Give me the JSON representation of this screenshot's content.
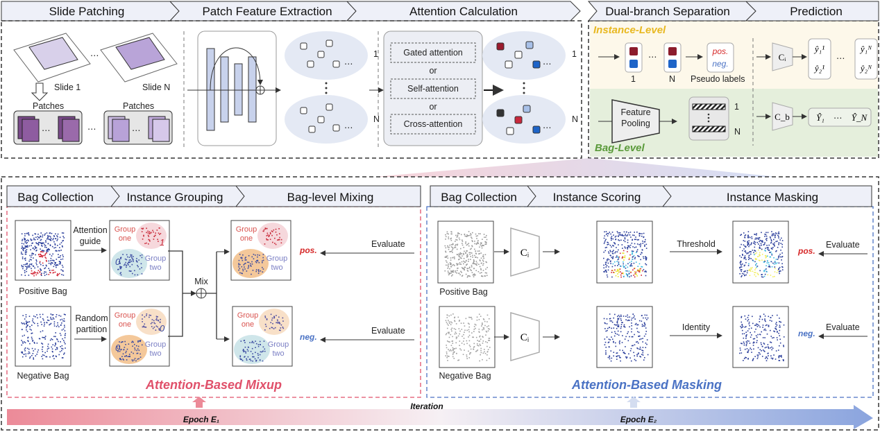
{
  "top": {
    "stages_left": [
      "Slide Patching",
      "Patch Feature Extraction",
      "Attention Calculation"
    ],
    "stages_right": [
      "Dual-branch Separation",
      "Prediction"
    ],
    "slide_patching": {
      "slide1": "Slide 1",
      "slideN": "Slide N",
      "patches": "Patches",
      "ellipsis": "⋯"
    },
    "feature": {
      "index_1": "1",
      "index_n": "N"
    },
    "attention": {
      "options": [
        "Gated attention",
        "Self-attention",
        "Cross-attention"
      ],
      "or": "or"
    },
    "dual_branch": {
      "instance_level": "Instance-Level",
      "bag_level": "Bag-Level",
      "pos": "pos.",
      "neg": "neg.",
      "pseudo_labels": "Pseudo labels",
      "index_1": "1",
      "index_n": "N",
      "feature_pooling": [
        "Feature",
        "Pooling"
      ]
    },
    "prediction": {
      "ci": "Cᵢ",
      "cb": "C_b",
      "instance_outputs": [
        "ŷ₁¹",
        "ŷ₂¹",
        "ŷ₁ᴺ",
        "ŷ₂ᴺ"
      ],
      "bag_outputs": [
        "Ŷ₁",
        "Ŷ_N"
      ]
    }
  },
  "mixup": {
    "stages": [
      "Bag Collection",
      "Instance Grouping",
      "Bag-level Mixing"
    ],
    "positive_bag": "Positive Bag",
    "negative_bag": "Negative Bag",
    "attention_guide": [
      "Attention",
      "guide"
    ],
    "random_partition": [
      "Random",
      "partition"
    ],
    "group_one": [
      "Group",
      "one"
    ],
    "group_two": [
      "Group",
      "two"
    ],
    "one": "1",
    "zero": "0",
    "mix": "Mix",
    "evaluate": "Evaluate",
    "pos": "pos.",
    "neg": "neg.",
    "title": "Attention-Based Mixup"
  },
  "masking": {
    "stages": [
      "Bag Collection",
      "Instance Scoring",
      "Instance Masking"
    ],
    "positive_bag": "Positive Bag",
    "negative_bag": "Negative Bag",
    "ci": "Cᵢ",
    "threshold": "Threshold",
    "identity": "Identity",
    "evaluate": "Evaluate",
    "pos": "pos.",
    "neg": "neg.",
    "title": "Attention-Based Masking"
  },
  "timeline": {
    "iteration": "Iteration",
    "epoch1": "Epoch E₁",
    "epoch2": "Epoch E₂"
  },
  "colors": {
    "mixup": "#e0506a",
    "masking": "#4a72c4",
    "pos": "#d62828",
    "neg": "#4a72c4",
    "instance_level": "#e8b820",
    "bag_level": "#5a9a3a",
    "header_bg": "#eef0f8"
  }
}
